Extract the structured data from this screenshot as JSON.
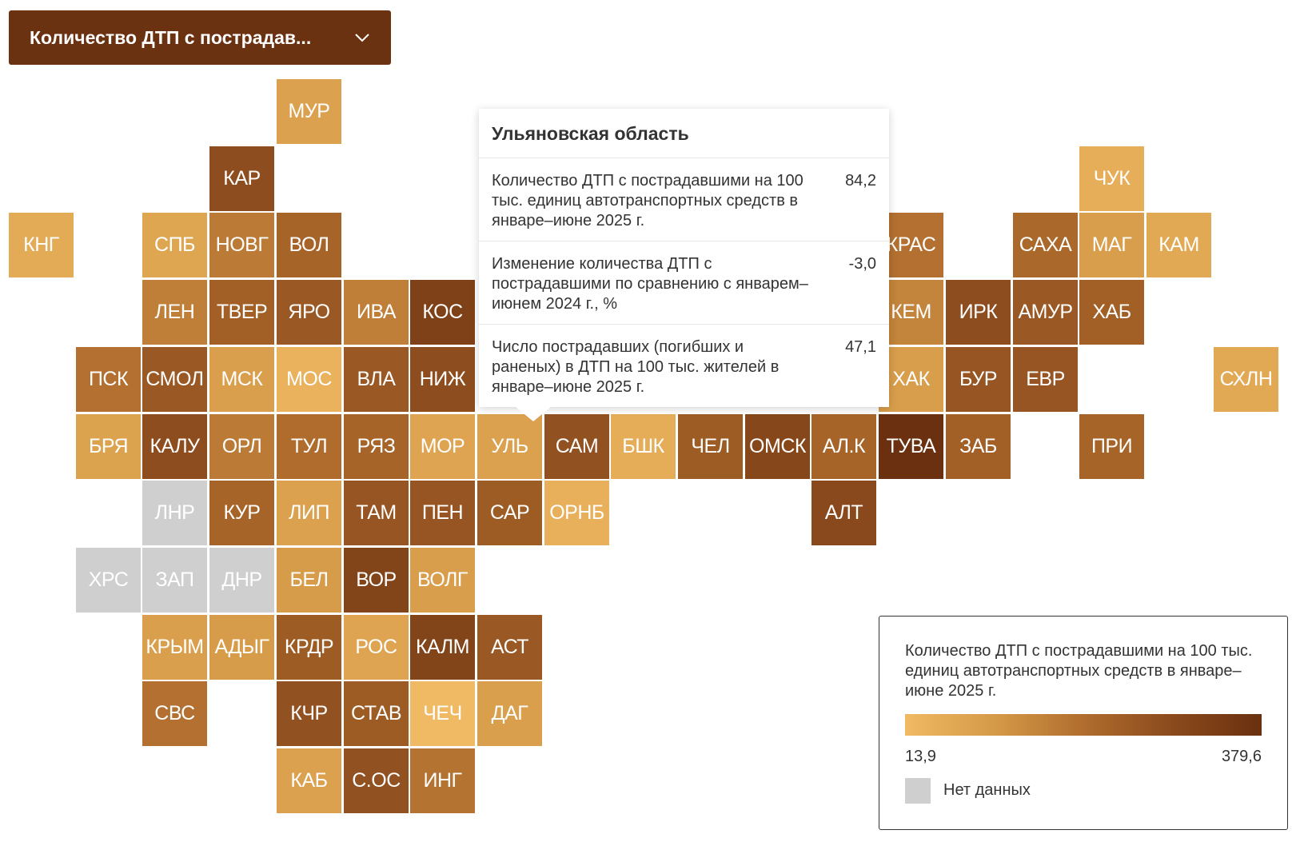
{
  "dropdown": {
    "label": "Количество ДТП с пострадав...",
    "icon": "chevron-down-icon"
  },
  "colors": {
    "no_data": "#cfcfcf",
    "scale": [
      "#f0b963",
      "#d59a48",
      "#b06d2e",
      "#8a4a1c",
      "#6a300f"
    ]
  },
  "regions": [
    {
      "code": "МУР",
      "value": 84,
      "col": 4,
      "row": 0
    },
    {
      "code": "КАР",
      "value": 280,
      "col": 3,
      "row": 1
    },
    {
      "code": "ЧУК",
      "value": 45,
      "col": 16,
      "row": 1
    },
    {
      "code": "КНГ",
      "value": 55,
      "col": 0,
      "row": 2
    },
    {
      "code": "СПБ",
      "value": 70,
      "col": 2,
      "row": 2
    },
    {
      "code": "НОВГ",
      "value": 170,
      "col": 3,
      "row": 2
    },
    {
      "code": "ВОЛ",
      "value": 220,
      "col": 4,
      "row": 2
    },
    {
      "code": "КРАС",
      "value": 190,
      "col": 13,
      "row": 2
    },
    {
      "code": "САХА",
      "value": 210,
      "col": 15,
      "row": 2
    },
    {
      "code": "МАГ",
      "value": 95,
      "col": 16,
      "row": 2
    },
    {
      "code": "КАМ",
      "value": 60,
      "col": 17,
      "row": 2
    },
    {
      "code": "ЛЕН",
      "value": 160,
      "col": 2,
      "row": 3
    },
    {
      "code": "ТВЕР",
      "value": 230,
      "col": 3,
      "row": 3
    },
    {
      "code": "ЯРО",
      "value": 250,
      "col": 4,
      "row": 3
    },
    {
      "code": "ИВА",
      "value": 160,
      "col": 5,
      "row": 3
    },
    {
      "code": "КОС",
      "value": 320,
      "col": 6,
      "row": 3
    },
    {
      "code": "КЕМ",
      "value": 150,
      "col": 13,
      "row": 3
    },
    {
      "code": "ИРК",
      "value": 280,
      "col": 14,
      "row": 3
    },
    {
      "code": "АМУР",
      "value": 250,
      "col": 15,
      "row": 3
    },
    {
      "code": "ХАБ",
      "value": 230,
      "col": 16,
      "row": 3
    },
    {
      "code": "ПСК",
      "value": 190,
      "col": 1,
      "row": 4
    },
    {
      "code": "СМОЛ",
      "value": 250,
      "col": 2,
      "row": 4
    },
    {
      "code": "МСК",
      "value": 90,
      "col": 3,
      "row": 4
    },
    {
      "code": "МОС",
      "value": 35,
      "col": 4,
      "row": 4
    },
    {
      "code": "ВЛА",
      "value": 250,
      "col": 5,
      "row": 4
    },
    {
      "code": "НИЖ",
      "value": 280,
      "col": 6,
      "row": 4
    },
    {
      "code": "ХАК",
      "value": 95,
      "col": 13,
      "row": 4
    },
    {
      "code": "БУР",
      "value": 260,
      "col": 14,
      "row": 4
    },
    {
      "code": "ЕВР",
      "value": 260,
      "col": 15,
      "row": 4
    },
    {
      "code": "СХЛН",
      "value": 60,
      "col": 18,
      "row": 4
    },
    {
      "code": "БРЯ",
      "value": 80,
      "col": 1,
      "row": 5
    },
    {
      "code": "КАЛУ",
      "value": 280,
      "col": 2,
      "row": 5
    },
    {
      "code": "ОРЛ",
      "value": 170,
      "col": 3,
      "row": 5
    },
    {
      "code": "ТУЛ",
      "value": 200,
      "col": 4,
      "row": 5
    },
    {
      "code": "РЯЗ",
      "value": 220,
      "col": 5,
      "row": 5
    },
    {
      "code": "МОР",
      "value": 75,
      "col": 6,
      "row": 5
    },
    {
      "code": "УЛЬ",
      "value": 84.2,
      "col": 7,
      "row": 5,
      "active": true
    },
    {
      "code": "САМ",
      "value": 270,
      "col": 8,
      "row": 5
    },
    {
      "code": "БШК",
      "value": 50,
      "col": 9,
      "row": 5
    },
    {
      "code": "ЧЕЛ",
      "value": 240,
      "col": 10,
      "row": 5
    },
    {
      "code": "ОМСК",
      "value": 300,
      "col": 11,
      "row": 5
    },
    {
      "code": "АЛ.К",
      "value": 220,
      "col": 12,
      "row": 5
    },
    {
      "code": "ТУВА",
      "value": 379.6,
      "col": 13,
      "row": 5
    },
    {
      "code": "ЗАБ",
      "value": 230,
      "col": 14,
      "row": 5
    },
    {
      "code": "ПРИ",
      "value": 220,
      "col": 16,
      "row": 5
    },
    {
      "code": "ЛНР",
      "value": null,
      "col": 2,
      "row": 6
    },
    {
      "code": "КУР",
      "value": 220,
      "col": 3,
      "row": 6
    },
    {
      "code": "ЛИП",
      "value": 85,
      "col": 4,
      "row": 6
    },
    {
      "code": "ТАМ",
      "value": 260,
      "col": 5,
      "row": 6
    },
    {
      "code": "ПЕН",
      "value": 260,
      "col": 6,
      "row": 6
    },
    {
      "code": "САР",
      "value": 240,
      "col": 7,
      "row": 6
    },
    {
      "code": "ОРНБ",
      "value": 40,
      "col": 8,
      "row": 6
    },
    {
      "code": "АЛТ",
      "value": 290,
      "col": 12,
      "row": 6
    },
    {
      "code": "ХРС",
      "value": null,
      "col": 1,
      "row": 7
    },
    {
      "code": "ЗАП",
      "value": null,
      "col": 2,
      "row": 7
    },
    {
      "code": "ДНР",
      "value": null,
      "col": 3,
      "row": 7
    },
    {
      "code": "БЕЛ",
      "value": 100,
      "col": 4,
      "row": 7
    },
    {
      "code": "ВОР",
      "value": 310,
      "col": 5,
      "row": 7
    },
    {
      "code": "ВОЛГ",
      "value": 95,
      "col": 6,
      "row": 7
    },
    {
      "code": "КРЫМ",
      "value": 90,
      "col": 2,
      "row": 8
    },
    {
      "code": "АДЫГ",
      "value": 100,
      "col": 3,
      "row": 8
    },
    {
      "code": "КРДР",
      "value": 240,
      "col": 4,
      "row": 8
    },
    {
      "code": "РОС",
      "value": 75,
      "col": 5,
      "row": 8
    },
    {
      "code": "КАЛМ",
      "value": 310,
      "col": 6,
      "row": 8
    },
    {
      "code": "АСТ",
      "value": 250,
      "col": 7,
      "row": 8
    },
    {
      "code": "СВС",
      "value": 190,
      "col": 2,
      "row": 9
    },
    {
      "code": "КЧР",
      "value": 270,
      "col": 4,
      "row": 9
    },
    {
      "code": "СТАВ",
      "value": 240,
      "col": 5,
      "row": 9
    },
    {
      "code": "ЧЕЧ",
      "value": 15,
      "col": 6,
      "row": 9
    },
    {
      "code": "ДАГ",
      "value": 90,
      "col": 7,
      "row": 9
    },
    {
      "code": "КАБ",
      "value": 85,
      "col": 4,
      "row": 10
    },
    {
      "code": "С.ОС",
      "value": 270,
      "col": 5,
      "row": 10
    },
    {
      "code": "ИНГ",
      "value": 185,
      "col": 6,
      "row": 10
    }
  ],
  "tooltip": {
    "title": "Ульяновская область",
    "rows": [
      {
        "label": "Количество ДТП с пострадавшими на 100 тыс. единиц автотранспортных средств в январе–июне 2025 г.",
        "value": "84,2"
      },
      {
        "label": "Изменение количества ДТП с пострадавшими по сравнению с январем–июнем 2024 г., %",
        "value": "-3,0"
      },
      {
        "label": "Число пострадавших (погибших и раненых) в ДТП на 100 тыс. жителей в январе–июне 2025 г.",
        "value": "47,1"
      }
    ]
  },
  "legend": {
    "title": "Количество ДТП с пострадавшими на 100 тыс. единиц автотранспортных средств в январе–июне 2025 г.",
    "min_label": "13,9",
    "max_label": "379,6",
    "min": 13.9,
    "max": 379.6,
    "no_data_label": "Нет данных"
  }
}
